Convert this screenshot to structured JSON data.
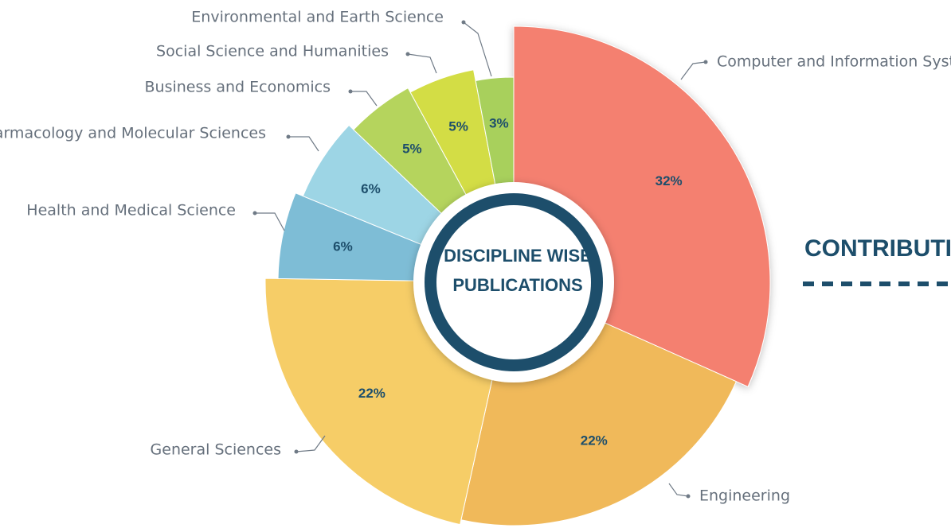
{
  "chart_data": {
    "type": "pie",
    "title": [
      "DISCIPLINE WISE",
      "PUBLICATIONS"
    ],
    "side_heading": "CONTRIBUTION T",
    "categories": [
      "Computer and Information System",
      "Engineering",
      "General Sciences",
      "Health and Medical Science",
      "Pharmacology and Molecular Sciences",
      "Business and Economics",
      "Social Science and Humanities",
      "Environmental and Earth Science"
    ],
    "values": [
      32,
      22,
      22,
      6,
      6,
      5,
      5,
      3
    ],
    "value_labels": [
      "32%",
      "22%",
      "22%",
      "6%",
      "6%",
      "5%",
      "5%",
      "3%"
    ],
    "colors": [
      "#f4806f",
      "#f0b95a",
      "#f6cd67",
      "#7ebdd6",
      "#9dd5e5",
      "#b5d45d",
      "#d3dd45",
      "#a8d05c"
    ]
  }
}
